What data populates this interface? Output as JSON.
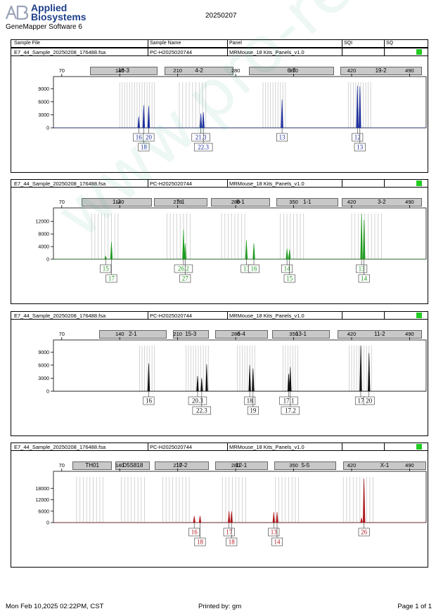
{
  "header": {
    "logo_line1": "Applied",
    "logo_line2": "Biosystems",
    "software": "GeneMapper Software 6",
    "run_date": "20250207"
  },
  "columns": {
    "sample_file": "Sample File",
    "sample_name": "Sample Name",
    "panel": "Panel",
    "sqi": "SQI",
    "sq": "SQ"
  },
  "watermark": "www.pro-rell.com.cn",
  "footer": {
    "datetime": "Mon Feb 10,2025 02:22PM, CST",
    "printed_by": "Printed by: gm",
    "page": "Page 1 of 1"
  },
  "colors": {
    "blue": "#1c2e9e",
    "green": "#1f9a1f",
    "black": "#111111",
    "red": "#b0161c",
    "sq_ok": "#22cc22",
    "marker_fill": "#c8c8c8"
  },
  "chart_data": [
    {
      "type": "line",
      "dye": "blue",
      "sample_file": "E7_44_Sample_20250208_176488.fsa",
      "sample_name": "PC-H2025020744",
      "panel": "MRMouse_18 Kits_Panels_v1.0",
      "xlim": [
        60,
        510
      ],
      "x_ticks": [
        70,
        140,
        210,
        280,
        350,
        420,
        490
      ],
      "ylim": [
        0,
        10500
      ],
      "y_ticks": [
        0,
        3000,
        6000,
        9000
      ],
      "markers": [
        {
          "name": "18-3",
          "start": 104,
          "end": 184
        },
        {
          "name": "4-2",
          "start": 194,
          "end": 276
        },
        {
          "name": "6-7",
          "start": 296,
          "end": 397
        },
        {
          "name": "19-2",
          "start": 406,
          "end": 503
        }
      ],
      "bins": [
        140,
        143,
        146,
        149,
        152,
        155,
        158,
        161,
        164,
        167,
        170,
        173,
        176,
        179,
        182,
        212,
        216,
        220,
        224,
        228,
        232,
        236,
        240,
        244,
        313,
        316,
        319,
        322,
        325,
        328,
        331,
        334,
        337,
        340,
        416,
        419,
        422,
        425,
        428,
        431,
        434,
        437,
        440,
        443
      ],
      "peaks": [
        {
          "x": 163,
          "y": 2600
        },
        {
          "x": 169,
          "y": 5200
        },
        {
          "x": 175,
          "y": 5000
        },
        {
          "x": 238,
          "y": 3300
        },
        {
          "x": 241,
          "y": 3600
        },
        {
          "x": 336,
          "y": 6500
        },
        {
          "x": 427,
          "y": 9700
        },
        {
          "x": 430,
          "y": 9500
        }
      ],
      "calls": [
        {
          "x": 163,
          "label": "16",
          "row": 1
        },
        {
          "x": 169,
          "label": "18",
          "row": 2
        },
        {
          "x": 175,
          "label": "20",
          "row": 1
        },
        {
          "x": 238,
          "label": "21.3",
          "row": 1
        },
        {
          "x": 241,
          "label": "22.3",
          "row": 2
        },
        {
          "x": 336,
          "label": "13",
          "row": 1
        },
        {
          "x": 427,
          "label": "12",
          "row": 1
        },
        {
          "x": 430,
          "label": "13",
          "row": 2
        }
      ]
    },
    {
      "type": "line",
      "dye": "green",
      "sample_file": "E7_44_Sample_20250208_176488.fsa",
      "sample_name": "PC-H2025020744",
      "panel": "MRMouse_18 Kits_Panels_v1.0",
      "xlim": [
        60,
        510
      ],
      "x_ticks": [
        70,
        140,
        210,
        280,
        350,
        420,
        490
      ],
      "ylim": [
        0,
        14500
      ],
      "y_ticks": [
        0,
        4000,
        8000,
        12000
      ],
      "markers": [
        {
          "name": "1-2",
          "start": 94,
          "end": 177
        },
        {
          "name": "7-1",
          "start": 181,
          "end": 244
        },
        {
          "name": "8-1",
          "start": 250,
          "end": 320
        },
        {
          "name": "1-1",
          "start": 329,
          "end": 402
        },
        {
          "name": "3-2",
          "start": 408,
          "end": 503
        }
      ],
      "bins": [
        106,
        110,
        114,
        118,
        122,
        126,
        130,
        134,
        138,
        197,
        201,
        205,
        209,
        213,
        217,
        221,
        225,
        263,
        267,
        271,
        275,
        279,
        283,
        287,
        291,
        334,
        338,
        342,
        346,
        350,
        354,
        358,
        362,
        420,
        424,
        428,
        432,
        436,
        440,
        444,
        448,
        452,
        456
      ],
      "peaks": [
        {
          "x": 123,
          "y": 1000
        },
        {
          "x": 130,
          "y": 5500
        },
        {
          "x": 217,
          "y": 9400
        },
        {
          "x": 219,
          "y": 5000
        },
        {
          "x": 293,
          "y": 6000
        },
        {
          "x": 302,
          "y": 5000
        },
        {
          "x": 342,
          "y": 3300
        },
        {
          "x": 345,
          "y": 3000
        },
        {
          "x": 432,
          "y": 14500
        },
        {
          "x": 435,
          "y": 12500
        }
      ],
      "calls": [
        {
          "x": 123,
          "label": "15",
          "row": 1
        },
        {
          "x": 130,
          "label": "17",
          "row": 2
        },
        {
          "x": 217,
          "label": "26.2",
          "row": 1
        },
        {
          "x": 219,
          "label": "27",
          "row": 2
        },
        {
          "x": 293,
          "label": "13",
          "row": 1
        },
        {
          "x": 302,
          "label": "16",
          "row": 1
        },
        {
          "x": 342,
          "label": "14",
          "row": 1
        },
        {
          "x": 345,
          "label": "15",
          "row": 2
        },
        {
          "x": 432,
          "label": "13",
          "row": 1
        },
        {
          "x": 435,
          "label": "14",
          "row": 2
        }
      ]
    },
    {
      "type": "line",
      "dye": "black",
      "sample_file": "E7_44_Sample_20250208_176488.fsa",
      "sample_name": "PC-H2025020744",
      "panel": "MRMouse_18 Kits_Panels_v1.0",
      "xlim": [
        60,
        510
      ],
      "x_ticks": [
        70,
        140,
        210,
        280,
        350,
        420,
        490
      ],
      "ylim": [
        0,
        10500
      ],
      "y_ticks": [
        0,
        3000,
        6000,
        9000
      ],
      "markers": [
        {
          "name": "2-1",
          "start": 115,
          "end": 195
        },
        {
          "name": "15-3",
          "start": 204,
          "end": 246
        },
        {
          "name": "6-4",
          "start": 255,
          "end": 317
        },
        {
          "name": "13-1",
          "start": 324,
          "end": 392
        },
        {
          "name": "11-2",
          "start": 403,
          "end": 503
        }
      ],
      "bins": [
        164,
        167,
        170,
        173,
        176,
        179,
        182,
        220,
        223,
        226,
        229,
        232,
        235,
        238,
        241,
        244,
        247,
        282,
        285,
        288,
        291,
        294,
        297,
        300,
        303,
        337,
        340,
        343,
        346,
        349,
        352,
        355,
        417,
        420,
        423,
        426,
        429,
        432,
        435,
        438,
        441,
        444
      ],
      "peaks": [
        {
          "x": 175,
          "y": 6400
        },
        {
          "x": 234,
          "y": 3500
        },
        {
          "x": 239,
          "y": 3000
        },
        {
          "x": 245,
          "y": 6200
        },
        {
          "x": 297,
          "y": 6000
        },
        {
          "x": 301,
          "y": 5200
        },
        {
          "x": 344,
          "y": 4000
        },
        {
          "x": 346,
          "y": 5600
        },
        {
          "x": 431,
          "y": 10500
        },
        {
          "x": 441,
          "y": 8800
        }
      ],
      "calls": [
        {
          "x": 175,
          "label": "16",
          "row": 1
        },
        {
          "x": 234,
          "label": "20.3",
          "row": 1
        },
        {
          "x": 239,
          "label": "22.3",
          "row": 2
        },
        {
          "x": 297,
          "label": "18",
          "row": 1
        },
        {
          "x": 301,
          "label": "19",
          "row": 2
        },
        {
          "x": 344,
          "label": "17.1",
          "row": 1
        },
        {
          "x": 346,
          "label": "17.2",
          "row": 2
        },
        {
          "x": 431,
          "label": "17",
          "row": 1
        },
        {
          "x": 441,
          "label": "20",
          "row": 1
        }
      ]
    },
    {
      "type": "line",
      "dye": "red",
      "sample_file": "E7_44_Sample_20250208_176488.fsa",
      "sample_name": "PC-H2025020744",
      "panel": "MRMouse_18 Kits_Panels_v1.0",
      "xlim": [
        60,
        510
      ],
      "x_ticks": [
        70,
        140,
        210,
        280,
        350,
        420,
        490
      ],
      "ylim": [
        0,
        24000
      ],
      "y_ticks": [
        0,
        6000,
        12000,
        18000
      ],
      "markers": [
        {
          "name": "TH01",
          "start": 83,
          "end": 129
        },
        {
          "name": "D5S818",
          "start": 135,
          "end": 175
        },
        {
          "name": "17-2",
          "start": 182,
          "end": 246
        },
        {
          "name": "12-1",
          "start": 255,
          "end": 317
        },
        {
          "name": "5-5",
          "start": 327,
          "end": 400
        },
        {
          "name": "X-1",
          "start": 410,
          "end": 508
        }
      ],
      "bins": [
        88,
        92,
        96,
        100,
        104,
        108,
        112,
        116,
        120,
        142,
        146,
        150,
        154,
        158,
        162,
        166,
        170,
        192,
        196,
        200,
        204,
        208,
        212,
        216,
        220,
        224,
        264,
        268,
        272,
        276,
        280,
        284,
        288,
        292,
        328,
        332,
        336,
        340,
        344,
        348,
        352,
        356,
        410,
        414,
        418,
        422,
        426,
        430,
        434,
        438,
        442,
        446
      ],
      "peaks": [
        {
          "x": 230,
          "y": 3500
        },
        {
          "x": 237,
          "y": 3500
        },
        {
          "x": 272,
          "y": 6000
        },
        {
          "x": 275,
          "y": 6000
        },
        {
          "x": 326,
          "y": 5500
        },
        {
          "x": 330,
          "y": 5500
        },
        {
          "x": 432,
          "y": 2500
        },
        {
          "x": 435,
          "y": 23000
        }
      ],
      "calls": [
        {
          "x": 230,
          "label": "16",
          "row": 1
        },
        {
          "x": 237,
          "label": "18",
          "row": 2
        },
        {
          "x": 272,
          "label": "17",
          "row": 1
        },
        {
          "x": 275,
          "label": "18",
          "row": 2
        },
        {
          "x": 326,
          "label": "13",
          "row": 1
        },
        {
          "x": 330,
          "label": "14",
          "row": 2
        },
        {
          "x": 435,
          "label": "26",
          "row": 1
        }
      ]
    }
  ]
}
